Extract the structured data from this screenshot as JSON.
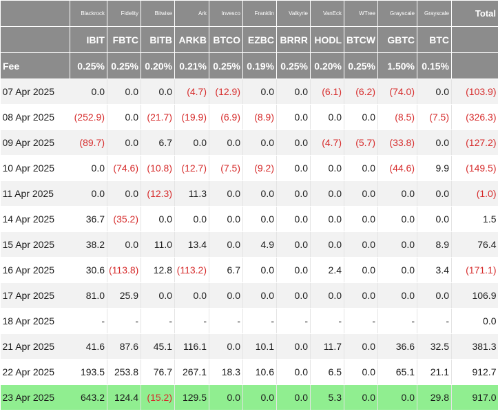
{
  "header": {
    "providers": [
      "Blackrock",
      "Fidelity",
      "Bitwise",
      "Ark",
      "Invesco",
      "Franklin",
      "Valkyrie",
      "VanEck",
      "WTree",
      "Grayscale",
      "Grayscale"
    ],
    "total_label": "Total",
    "tickers": [
      "IBIT",
      "FBTC",
      "BITB",
      "ARKB",
      "BTCO",
      "EZBC",
      "BRRR",
      "HODL",
      "BTCW",
      "GBTC",
      "BTC"
    ],
    "fee_label": "Fee",
    "fees": [
      "0.25%",
      "0.25%",
      "0.20%",
      "0.21%",
      "0.25%",
      "0.19%",
      "0.25%",
      "0.20%",
      "0.25%",
      "1.50%",
      "0.15%"
    ]
  },
  "colors": {
    "header_bg": "#8c8c8c",
    "negative": "#d62b2b",
    "highlight": "#90ee90",
    "stripe": "#f2f2f2"
  },
  "rows": [
    {
      "date": "07 Apr 2025",
      "values": [
        "0.0",
        "0.0",
        "0.0",
        "(4.7)",
        "(12.9)",
        "0.0",
        "0.0",
        "(6.1)",
        "(6.2)",
        "(74.0)",
        "0.0"
      ],
      "total": "(103.9)"
    },
    {
      "date": "08 Apr 2025",
      "values": [
        "(252.9)",
        "0.0",
        "(21.7)",
        "(19.9)",
        "(6.9)",
        "(8.9)",
        "0.0",
        "0.0",
        "0.0",
        "(8.5)",
        "(7.5)"
      ],
      "total": "(326.3)"
    },
    {
      "date": "09 Apr 2025",
      "values": [
        "(89.7)",
        "0.0",
        "6.7",
        "0.0",
        "0.0",
        "0.0",
        "0.0",
        "(4.7)",
        "(5.7)",
        "(33.8)",
        "0.0"
      ],
      "total": "(127.2)"
    },
    {
      "date": "10 Apr 2025",
      "values": [
        "0.0",
        "(74.6)",
        "(10.8)",
        "(12.7)",
        "(7.5)",
        "(9.2)",
        "0.0",
        "0.0",
        "0.0",
        "(44.6)",
        "9.9"
      ],
      "total": "(149.5)"
    },
    {
      "date": "11 Apr 2025",
      "values": [
        "0.0",
        "0.0",
        "(12.3)",
        "11.3",
        "0.0",
        "0.0",
        "0.0",
        "0.0",
        "0.0",
        "0.0",
        "0.0"
      ],
      "total": "(1.0)"
    },
    {
      "date": "14 Apr 2025",
      "values": [
        "36.7",
        "(35.2)",
        "0.0",
        "0.0",
        "0.0",
        "0.0",
        "0.0",
        "0.0",
        "0.0",
        "0.0",
        "0.0"
      ],
      "total": "1.5"
    },
    {
      "date": "15 Apr 2025",
      "values": [
        "38.2",
        "0.0",
        "11.0",
        "13.4",
        "0.0",
        "4.9",
        "0.0",
        "0.0",
        "0.0",
        "0.0",
        "8.9"
      ],
      "total": "76.4"
    },
    {
      "date": "16 Apr 2025",
      "values": [
        "30.6",
        "(113.8)",
        "12.8",
        "(113.2)",
        "6.7",
        "0.0",
        "0.0",
        "2.4",
        "0.0",
        "0.0",
        "3.4"
      ],
      "total": "(171.1)"
    },
    {
      "date": "17 Apr 2025",
      "values": [
        "81.0",
        "25.9",
        "0.0",
        "0.0",
        "0.0",
        "0.0",
        "0.0",
        "0.0",
        "0.0",
        "0.0",
        "0.0"
      ],
      "total": "106.9"
    },
    {
      "date": "18 Apr 2025",
      "values": [
        "-",
        "-",
        "-",
        "-",
        "-",
        "-",
        "-",
        "-",
        "-",
        "-",
        "-"
      ],
      "total": "0.0"
    },
    {
      "date": "21 Apr 2025",
      "values": [
        "41.6",
        "87.6",
        "45.1",
        "116.1",
        "0.0",
        "10.1",
        "0.0",
        "11.7",
        "0.0",
        "36.6",
        "32.5"
      ],
      "total": "381.3"
    },
    {
      "date": "22 Apr 2025",
      "values": [
        "193.5",
        "253.8",
        "76.7",
        "267.1",
        "18.3",
        "10.6",
        "0.0",
        "6.5",
        "0.0",
        "65.1",
        "21.1"
      ],
      "total": "912.7"
    },
    {
      "date": "23 Apr 2025",
      "values": [
        "643.2",
        "124.4",
        "(15.2)",
        "129.5",
        "0.0",
        "0.0",
        "0.0",
        "5.3",
        "0.0",
        "0.0",
        "29.8"
      ],
      "total": "917.0",
      "highlight": true
    }
  ]
}
